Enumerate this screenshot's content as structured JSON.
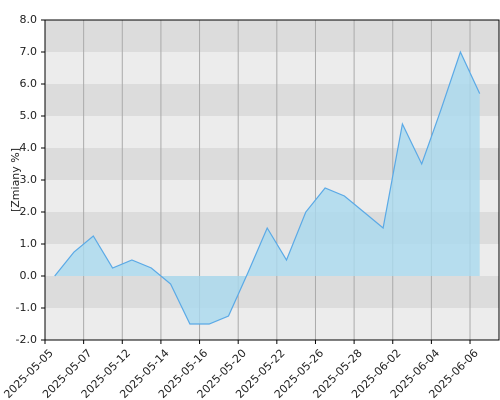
{
  "chart_data": {
    "type": "area",
    "y_label": "[Zmiany %]",
    "categories": [
      "2025-05-05",
      null,
      "2025-05-07",
      null,
      "2025-05-12",
      null,
      "2025-05-14",
      null,
      "2025-05-16",
      null,
      "2025-05-20",
      null,
      "2025-05-22",
      null,
      "2025-05-26",
      null,
      "2025-05-28",
      null,
      "2025-06-02",
      null,
      "2025-06-04",
      null,
      "2025-06-06"
    ],
    "values": [
      0,
      0.75,
      1.25,
      0.25,
      0.5,
      0.25,
      -0.25,
      -1.5,
      -1.5,
      -1.25,
      0.1,
      1.5,
      0.5,
      2.0,
      2.75,
      2.5,
      2.0,
      1.5,
      4.75,
      3.5,
      5.2,
      7.0,
      5.7
    ],
    "color": "#5aa9e6",
    "fill": "#a9d9ef",
    "ylim": [
      -2,
      8
    ],
    "yticks": [
      {
        "value": -2,
        "label": "-2.0"
      },
      {
        "value": -1,
        "label": "-1.0"
      },
      {
        "value": 0,
        "label": "0.0"
      },
      {
        "value": 1,
        "label": "1.0"
      },
      {
        "value": 2,
        "label": "2.0"
      },
      {
        "value": 3,
        "label": "3.0"
      },
      {
        "value": 4,
        "label": "4.0"
      },
      {
        "value": 5,
        "label": "5.0"
      },
      {
        "value": 6,
        "label": "6.0"
      },
      {
        "value": 7,
        "label": "7.0"
      },
      {
        "value": 8,
        "label": "8.0"
      }
    ],
    "grid": true
  }
}
